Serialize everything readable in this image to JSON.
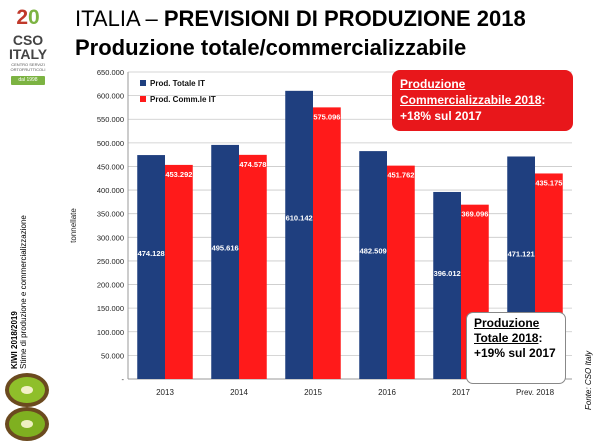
{
  "logo": {
    "number_a": "2",
    "number_b": "0",
    "name_line1": "CSO",
    "name_line2": "ITALY",
    "sub_line1": "CENTRO SERVIZI",
    "sub_line2": "ORTOFRUTTICOLI",
    "badge": "dal 1998"
  },
  "title": {
    "line1_prefix": "ITALIA – ",
    "line1_bold": "PREVISIONI DI PRODUZIONE 2018",
    "line2": "Produzione totale/commercializzabile"
  },
  "side_label": {
    "line1": "KIWI 2018/2019",
    "line2": "Stime di produzione e commercializzazione"
  },
  "source": "Fonte: CSO Italy",
  "callout_comm": {
    "heading": "Produzione Commercializzabile 2018",
    "tail": ":",
    "text": "+18% sul 2017"
  },
  "callout_total": {
    "heading": "Produzione Totale 2018",
    "tail": ":",
    "text": "+19% sul 2017"
  },
  "chart_data": {
    "type": "bar",
    "categories": [
      "2013",
      "2014",
      "2015",
      "2016",
      "2017",
      "Prev. 2018"
    ],
    "series": [
      {
        "name": "Prod. Totale IT",
        "color": "#1f3f7f",
        "values": [
          474128,
          495616,
          610142,
          482509,
          396012,
          471121
        ],
        "labels": [
          "474.128",
          "495.616",
          "610.142",
          "482.509",
          "396.012",
          "471.121"
        ]
      },
      {
        "name": "Prod. Comm.le IT",
        "color": "#ff1a1a",
        "values": [
          453292,
          474578,
          575096,
          451762,
          369096,
          435175
        ],
        "labels": [
          "453.292",
          "474.578",
          "575.096",
          "451.762",
          "369.096",
          "435.175"
        ]
      }
    ],
    "ylabel": "tonnellate",
    "xlabel": "",
    "ylim": [
      0,
      650000
    ],
    "yticks": [
      0,
      50000,
      100000,
      150000,
      200000,
      250000,
      300000,
      350000,
      400000,
      450000,
      500000,
      550000,
      600000,
      650000
    ],
    "ytick_labels": [
      "-",
      "50.000",
      "100.000",
      "150.000",
      "200.000",
      "250.000",
      "300.000",
      "350.000",
      "400.000",
      "450.000",
      "500.000",
      "550.000",
      "600.000",
      "650.000"
    ],
    "grid": true,
    "legend_position": "top-left"
  }
}
